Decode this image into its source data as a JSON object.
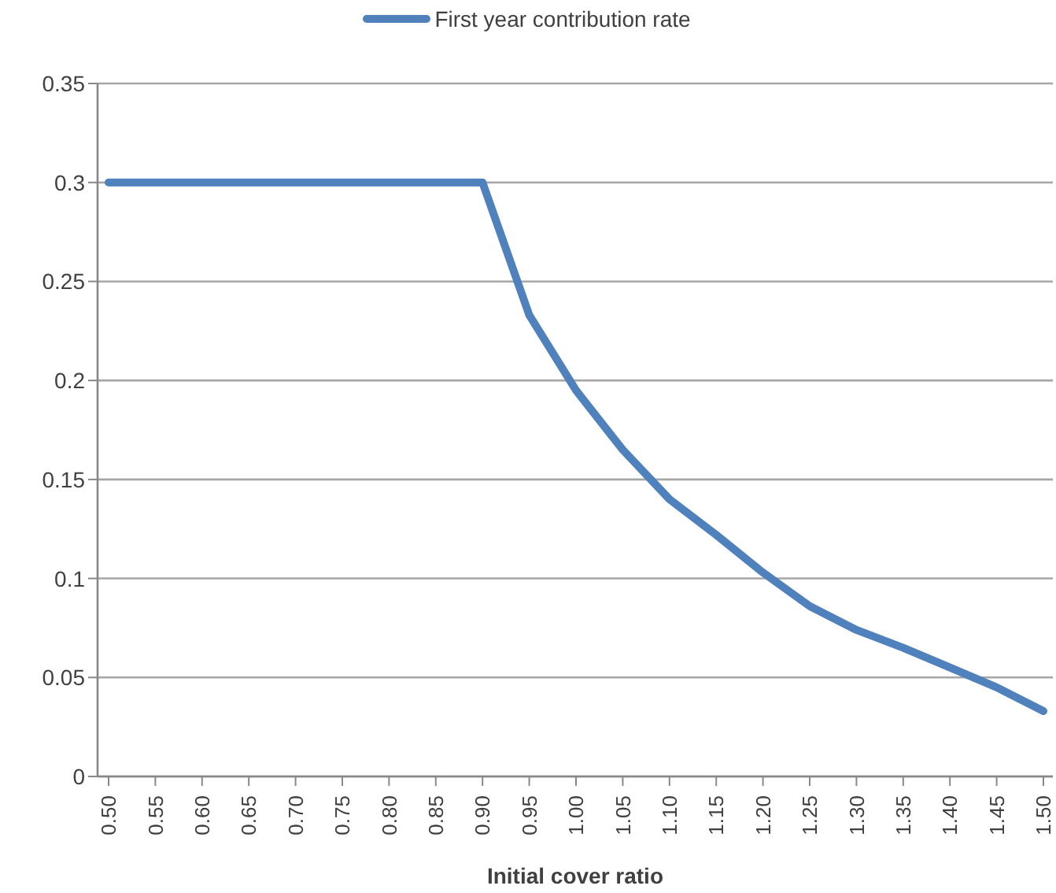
{
  "chart_data": {
    "type": "line",
    "xlabel": "Initial cover ratio",
    "categories": [
      "0.50",
      "0.55",
      "0.60",
      "0.65",
      "0.70",
      "0.75",
      "0.80",
      "0.85",
      "0.90",
      "0.95",
      "1.00",
      "1.05",
      "1.10",
      "1.15",
      "1.20",
      "1.25",
      "1.30",
      "1.35",
      "1.40",
      "1.45",
      "1.50"
    ],
    "series": [
      {
        "name": "First year contribution rate",
        "color": "#4f81bd",
        "values": [
          0.3,
          0.3,
          0.3,
          0.3,
          0.3,
          0.3,
          0.3,
          0.3,
          0.3,
          0.233,
          0.195,
          0.165,
          0.14,
          0.122,
          0.103,
          0.086,
          0.074,
          0.065,
          0.055,
          0.045,
          0.033
        ]
      }
    ],
    "ylim": [
      0,
      0.35
    ],
    "yticks": [
      0,
      0.05,
      0.1,
      0.15,
      0.2,
      0.25,
      0.3,
      0.35
    ],
    "grid": "y",
    "legend": "top",
    "marker": "none",
    "line_style": "solid"
  }
}
